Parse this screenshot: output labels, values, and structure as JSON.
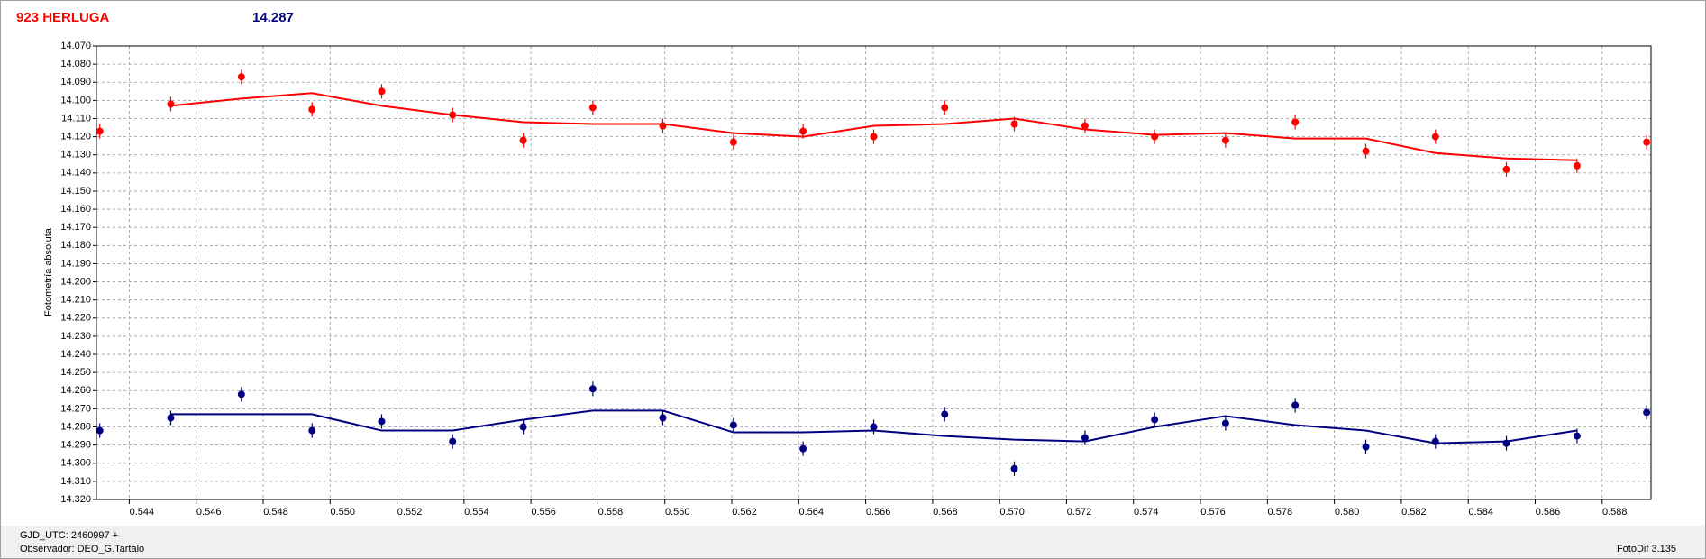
{
  "chart_data": {
    "type": "scatter",
    "y_label": "Fotometría absoluta",
    "footer_left_1": "GJD_UTC: 2460997 +",
    "footer_left_2": "Observador: DEO_G.Tartalo",
    "footer_right": "FotoDif 3.135",
    "x": [
      0.54312,
      0.54524,
      0.54735,
      0.54946,
      0.55154,
      0.55366,
      0.55577,
      0.55785,
      0.55994,
      0.56205,
      0.56413,
      0.56624,
      0.56836,
      0.57044,
      0.57255,
      0.57463,
      0.57675,
      0.57883,
      0.58094,
      0.58302,
      0.58514,
      0.58725,
      0.58933
    ],
    "series": [
      {
        "name": "923 HERLUGA",
        "color": "#ff0000",
        "values": [
          14.117,
          14.102,
          14.087,
          14.105,
          14.095,
          14.108,
          14.122,
          14.104,
          14.114,
          14.123,
          14.117,
          14.12,
          14.104,
          14.113,
          14.114,
          14.12,
          14.122,
          14.112,
          14.128,
          14.12,
          14.138,
          14.136,
          14.123
        ],
        "errors": [
          0.004,
          0.004,
          0.004,
          0.004,
          0.004,
          0.004,
          0.004,
          0.004,
          0.004,
          0.004,
          0.004,
          0.004,
          0.004,
          0.004,
          0.004,
          0.004,
          0.004,
          0.004,
          0.004,
          0.004,
          0.004,
          0.004,
          0.004
        ],
        "fit_values": [
          null,
          14.103,
          14.099,
          14.096,
          14.103,
          14.108,
          14.112,
          14.113,
          14.113,
          14.118,
          14.12,
          14.114,
          14.113,
          14.11,
          14.116,
          14.119,
          14.118,
          14.121,
          14.121,
          14.129,
          14.132,
          14.133,
          null
        ]
      },
      {
        "name": "14.287",
        "color": "#000080",
        "values": [
          14.282,
          14.275,
          14.262,
          14.282,
          14.277,
          14.288,
          14.28,
          14.259,
          14.275,
          14.279,
          14.292,
          14.28,
          14.273,
          14.303,
          14.286,
          14.276,
          14.278,
          14.268,
          14.291,
          14.288,
          14.289,
          14.285,
          14.272
        ],
        "errors": [
          0.004,
          0.004,
          0.004,
          0.004,
          0.004,
          0.004,
          0.004,
          0.004,
          0.004,
          0.004,
          0.004,
          0.004,
          0.004,
          0.004,
          0.004,
          0.004,
          0.004,
          0.004,
          0.004,
          0.004,
          0.004,
          0.004,
          0.004
        ],
        "fit_values": [
          null,
          14.273,
          14.273,
          14.273,
          14.282,
          14.282,
          14.276,
          14.271,
          14.271,
          14.283,
          14.283,
          14.282,
          14.285,
          14.287,
          14.288,
          14.28,
          14.274,
          14.279,
          14.282,
          14.289,
          14.288,
          14.282,
          null
        ]
      }
    ],
    "xlim": [
      0.54302,
      0.58946
    ],
    "ylim": [
      14.07,
      14.32
    ],
    "y_inverted": true,
    "grid": true,
    "xticks": [
      0.544,
      0.546,
      0.548,
      {
        "value": 0.55,
        "label": "0.550"
      },
      0.552,
      0.554,
      0.556,
      0.558,
      {
        "value": 0.56,
        "label": "0.560"
      },
      0.562,
      0.564,
      0.566,
      0.568,
      {
        "value": 0.57,
        "label": "0.570"
      },
      0.572,
      0.574,
      0.576,
      0.578,
      {
        "value": 0.58,
        "label": "0.580"
      },
      0.582,
      0.584,
      0.586,
      0.588
    ],
    "yticks": [
      {
        "value": 14.07,
        "label": "14.070"
      },
      {
        "value": 14.08,
        "label": "14.080"
      },
      {
        "value": 14.09,
        "label": "14.090"
      },
      {
        "value": 14.1,
        "label": "14.100"
      },
      {
        "value": 14.11,
        "label": "14.110"
      },
      {
        "value": 14.12,
        "label": "14.120"
      },
      {
        "value": 14.13,
        "label": "14.130"
      },
      {
        "value": 14.14,
        "label": "14.140"
      },
      {
        "value": 14.15,
        "label": "14.150"
      },
      {
        "value": 14.16,
        "label": "14.160"
      },
      {
        "value": 14.17,
        "label": "14.170"
      },
      {
        "value": 14.18,
        "label": "14.180"
      },
      {
        "value": 14.19,
        "label": "14.190"
      },
      {
        "value": 14.2,
        "label": "14.200"
      },
      {
        "value": 14.21,
        "label": "14.210"
      },
      {
        "value": 14.22,
        "label": "14.220"
      },
      {
        "value": 14.23,
        "label": "14.230"
      },
      {
        "value": 14.24,
        "label": "14.240"
      },
      {
        "value": 14.25,
        "label": "14.250"
      },
      {
        "value": 14.26,
        "label": "14.260"
      },
      {
        "value": 14.27,
        "label": "14.270"
      },
      {
        "value": 14.28,
        "label": "14.280"
      },
      {
        "value": 14.29,
        "label": "14.290"
      },
      {
        "value": 14.3,
        "label": "14.300"
      },
      {
        "value": 14.31,
        "label": "14.310"
      },
      {
        "value": 14.32,
        "label": "14.320"
      }
    ]
  }
}
